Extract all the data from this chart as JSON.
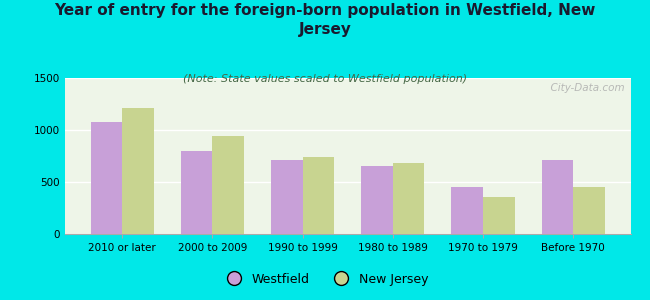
{
  "title": "Year of entry for the foreign-born population in Westfield, New\nJersey",
  "subtitle": "(Note: State values scaled to Westfield population)",
  "categories": [
    "2010 or later",
    "2000 to 2009",
    "1990 to 1999",
    "1980 to 1989",
    "1970 to 1979",
    "Before 1970"
  ],
  "westfield_values": [
    1080,
    800,
    710,
    650,
    455,
    710
  ],
  "nj_values": [
    1210,
    940,
    745,
    680,
    360,
    450
  ],
  "westfield_color": "#c8a0d8",
  "nj_color": "#c8d490",
  "background_color": "#00e8e8",
  "plot_bg_color": "#eef5e8",
  "ylim": [
    0,
    1500
  ],
  "yticks": [
    0,
    500,
    1000,
    1500
  ],
  "title_fontsize": 11,
  "subtitle_fontsize": 8,
  "legend_fontsize": 9,
  "tick_fontsize": 7.5,
  "watermark": "  City-Data.com"
}
